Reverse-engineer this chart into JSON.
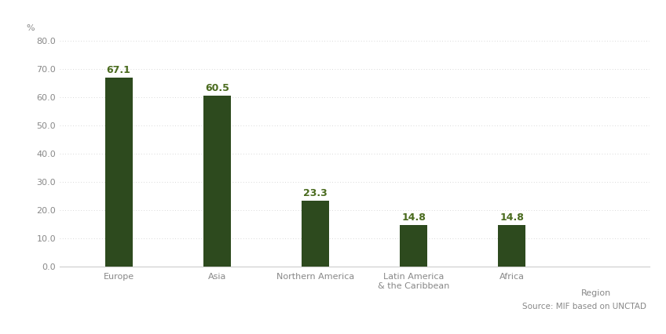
{
  "categories": [
    "Europe",
    "Asia",
    "Northern America",
    "Latin America\n& the Caribbean",
    "Africa"
  ],
  "values": [
    67.1,
    60.5,
    23.3,
    14.8,
    14.8
  ],
  "bar_color": "#2d4a1e",
  "label_color": "#4a6b1e",
  "ylabel": "%",
  "xlabel": "Region",
  "ylim": [
    0,
    80
  ],
  "yticks": [
    0.0,
    10.0,
    20.0,
    30.0,
    40.0,
    50.0,
    60.0,
    70.0,
    80.0
  ],
  "source_text": "Source: MIF based on UNCTAD",
  "bg_color": "#ffffff",
  "grid_color": "#cccccc",
  "tick_label_color": "#888888",
  "value_fontsize": 9,
  "axis_label_fontsize": 8,
  "source_fontsize": 7.5,
  "bar_width": 0.28
}
